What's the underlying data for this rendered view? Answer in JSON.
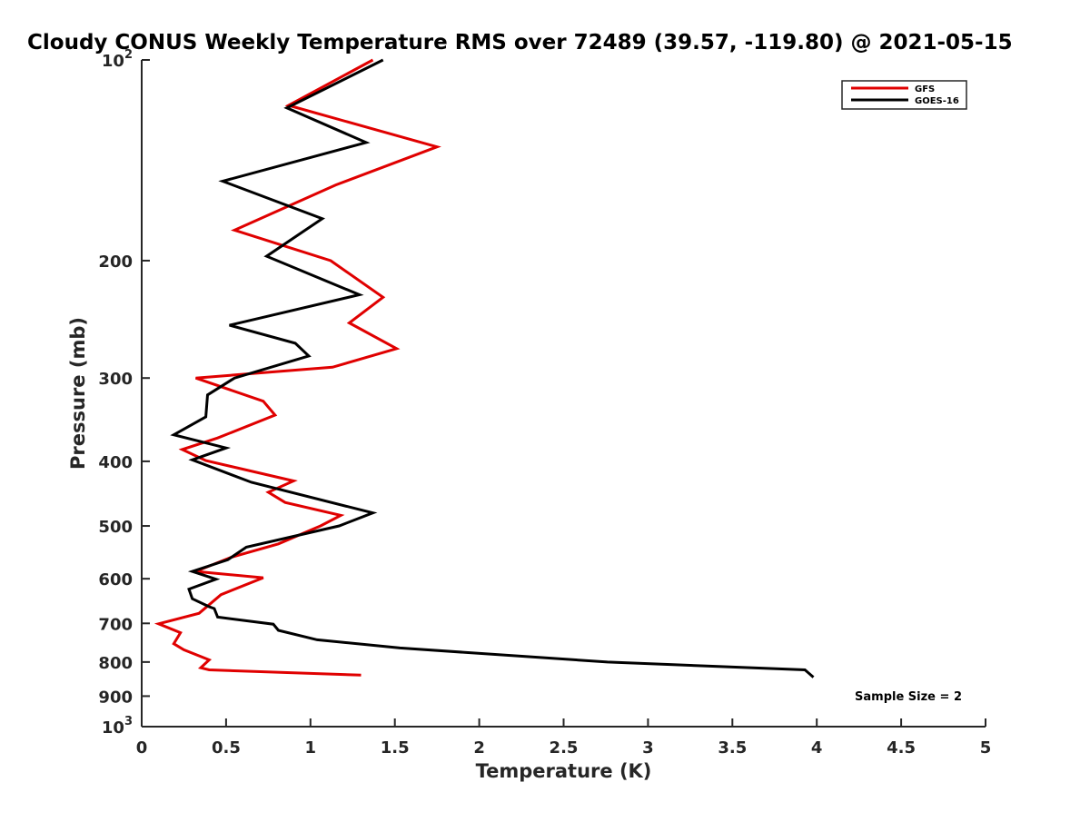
{
  "chart_data": {
    "type": "line",
    "title": "Cloudy CONUS Weekly Temperature RMS over 72489 (39.57, -119.80) @ 2021-05-15",
    "xlabel": "Temperature (K)",
    "ylabel": "Pressure (mb)",
    "xlim": [
      0,
      5
    ],
    "ylim": [
      1000,
      100
    ],
    "y_scale": "log",
    "y_reversed": true,
    "grid": false,
    "legend_position": "top-right",
    "x_ticks": [
      "0",
      "0.5",
      "1",
      "1.5",
      "2",
      "2.5",
      "3",
      "3.5",
      "4",
      "4.5",
      "5"
    ],
    "x_tick_values": [
      0,
      0.5,
      1,
      1.5,
      2,
      2.5,
      3,
      3.5,
      4,
      4.5,
      5
    ],
    "y_ticks": [
      {
        "value": 100,
        "base": "10",
        "exp": "2",
        "label": ""
      },
      {
        "value": 200,
        "label": "200"
      },
      {
        "value": 300,
        "label": "300"
      },
      {
        "value": 400,
        "label": "400"
      },
      {
        "value": 500,
        "label": "500"
      },
      {
        "value": 600,
        "label": "600"
      },
      {
        "value": 700,
        "label": "700"
      },
      {
        "value": 800,
        "label": "800"
      },
      {
        "value": 900,
        "label": "900"
      },
      {
        "value": 1000,
        "base": "10",
        "exp": "3",
        "label": ""
      }
    ],
    "series": [
      {
        "name": "GFS",
        "color": "#e00000",
        "points": [
          [
            1.37,
            100
          ],
          [
            0.87,
            117
          ],
          [
            1.75,
            135
          ],
          [
            1.15,
            154
          ],
          [
            0.55,
            180
          ],
          [
            1.12,
            200
          ],
          [
            1.43,
            227
          ],
          [
            1.23,
            248
          ],
          [
            1.51,
            271
          ],
          [
            1.13,
            289
          ],
          [
            0.32,
            300
          ],
          [
            0.72,
            325
          ],
          [
            0.79,
            341
          ],
          [
            0.45,
            369
          ],
          [
            0.24,
            384
          ],
          [
            0.38,
            399
          ],
          [
            0.9,
            428
          ],
          [
            0.75,
            445
          ],
          [
            0.85,
            461
          ],
          [
            1.18,
            482
          ],
          [
            1.06,
            500
          ],
          [
            0.81,
            532
          ],
          [
            0.53,
            557
          ],
          [
            0.32,
            585
          ],
          [
            0.72,
            598
          ],
          [
            0.47,
            634
          ],
          [
            0.34,
            676
          ],
          [
            0.1,
            701
          ],
          [
            0.23,
            723
          ],
          [
            0.19,
            751
          ],
          [
            0.25,
            767
          ],
          [
            0.4,
            794
          ],
          [
            0.35,
            816
          ],
          [
            0.4,
            822
          ],
          [
            1.3,
            837
          ]
        ]
      },
      {
        "name": "GOES-16",
        "color": "#000000",
        "points": [
          [
            1.43,
            100
          ],
          [
            0.86,
            118
          ],
          [
            1.33,
            133
          ],
          [
            0.48,
            152
          ],
          [
            1.07,
            173
          ],
          [
            0.74,
            197
          ],
          [
            1.29,
            225
          ],
          [
            0.52,
            250
          ],
          [
            0.91,
            266
          ],
          [
            0.99,
            278
          ],
          [
            0.55,
            300
          ],
          [
            0.39,
            318
          ],
          [
            0.38,
            343
          ],
          [
            0.19,
            365
          ],
          [
            0.5,
            382
          ],
          [
            0.3,
            398
          ],
          [
            0.65,
            430
          ],
          [
            1.37,
            478
          ],
          [
            1.17,
            500
          ],
          [
            0.62,
            538
          ],
          [
            0.51,
            562
          ],
          [
            0.3,
            585
          ],
          [
            0.44,
            601
          ],
          [
            0.28,
            622
          ],
          [
            0.3,
            643
          ],
          [
            0.4,
            661
          ],
          [
            0.43,
            665
          ],
          [
            0.45,
            685
          ],
          [
            0.78,
            702
          ],
          [
            0.81,
            717
          ],
          [
            1.04,
            741
          ],
          [
            1.53,
            762
          ],
          [
            2.76,
            800
          ],
          [
            3.93,
            822
          ],
          [
            3.98,
            843
          ]
        ]
      }
    ],
    "annotations": [
      {
        "text": "Sample Size = 2"
      }
    ]
  }
}
